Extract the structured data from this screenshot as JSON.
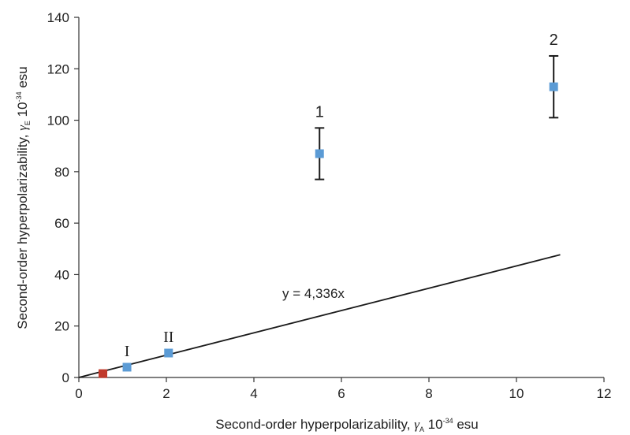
{
  "chart_data": {
    "type": "scatter",
    "xlim": [
      0,
      12
    ],
    "ylim": [
      0,
      140
    ],
    "xticks": [
      0,
      2,
      4,
      6,
      8,
      10,
      12
    ],
    "yticks": [
      0,
      20,
      40,
      60,
      80,
      100,
      120,
      140
    ],
    "x_tick_labels": [
      "0",
      "2",
      "4",
      "6",
      "8",
      "10",
      "12"
    ],
    "y_tick_labels": [
      "0",
      "20",
      "40",
      "60",
      "80",
      "100",
      "120",
      "140"
    ],
    "xlabel": {
      "pre": "Second-order hyperpolarizability, ",
      "symbol": "γ",
      "sub": "A",
      "mid": " 10",
      "sup": "-34",
      "post": " esu"
    },
    "ylabel": {
      "pre": "Second-order hyperpolarizability, ",
      "symbol": "γ",
      "sub": "E",
      "mid": " 10",
      "sup": "-34",
      "post": " esu"
    },
    "points": [
      {
        "label": "",
        "x": 0.55,
        "y": 1.5,
        "color": "#c0392b"
      },
      {
        "label": "I",
        "x": 1.1,
        "y": 4,
        "color": "#5b9bd5"
      },
      {
        "label": "II",
        "x": 2.05,
        "y": 9.5,
        "color": "#5b9bd5"
      },
      {
        "label": "1",
        "x": 5.5,
        "y": 87,
        "err_low": 77,
        "err_high": 97,
        "color": "#5b9bd5"
      },
      {
        "label": "2",
        "x": 10.85,
        "y": 113,
        "err_low": 101,
        "err_high": 125,
        "color": "#5b9bd5"
      }
    ],
    "trendline": {
      "slope": 4.336,
      "x_start": 0,
      "x_end": 11,
      "equation": "y = 4,336x"
    },
    "grid": false
  }
}
